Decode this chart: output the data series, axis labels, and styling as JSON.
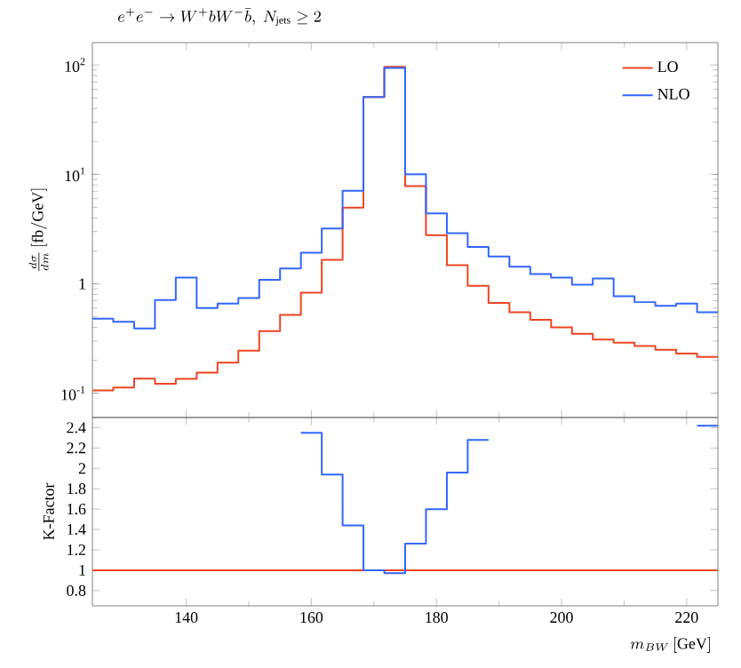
{
  "chart_data": [
    {
      "type": "histogram",
      "title": "e^+e^- \\to W^+bW^-\\bar{b},\\ N_{\\mathrm{jets}} \\geq 2",
      "ylabel": "\\frac{d\\sigma}{dm}\\,[\\mathrm{fb/GeV}]",
      "bins": [
        125,
        128.33,
        131.67,
        135,
        138.33,
        141.67,
        145,
        148.33,
        151.67,
        155,
        158.33,
        161.67,
        165,
        168.33,
        171.67,
        175,
        178.33,
        181.67,
        185,
        188.33,
        191.67,
        195,
        198.33,
        201.67,
        205,
        208.33,
        211.67,
        215,
        218.33,
        221.67,
        225
      ],
      "series": [
        {
          "name": "LO",
          "color": "#ee4422",
          "values": [
            0.106,
            0.113,
            0.136,
            0.122,
            0.135,
            0.154,
            0.19,
            0.245,
            0.37,
            0.52,
            0.83,
            1.66,
            4.96,
            50.8,
            96,
            7.8,
            2.78,
            1.48,
            0.96,
            0.67,
            0.55,
            0.47,
            0.4,
            0.35,
            0.31,
            0.29,
            0.27,
            0.25,
            0.23,
            0.215
          ]
        },
        {
          "name": "NLO",
          "color": "#3366ff",
          "values": [
            0.48,
            0.45,
            0.39,
            0.71,
            1.14,
            0.6,
            0.66,
            0.74,
            1.09,
            1.38,
            1.92,
            3.2,
            7.1,
            50.8,
            94,
            10,
            4.4,
            2.9,
            2.17,
            1.78,
            1.43,
            1.23,
            1.14,
            0.98,
            1.12,
            0.77,
            0.68,
            0.63,
            0.66,
            0.55
          ]
        }
      ],
      "xlim": [
        125,
        225
      ],
      "xticks": [
        140,
        160,
        180,
        200,
        220
      ],
      "log": "y",
      "ylim": [
        0.06,
        160
      ],
      "yticks": [
        {
          "value": 0.1,
          "label": "10$^{-1}$"
        },
        1,
        {
          "value": 10,
          "label": "10$^{1}$"
        },
        {
          "value": 100,
          "label": "10$^{2}$"
        }
      ],
      "tick_labels": "y",
      "legend": "top right",
      "grid": false
    },
    {
      "type": "step",
      "xlabel": "m_{BW}\\,[\\mathrm{GeV}]",
      "ylabel": "K-Factor",
      "series": [
        {
          "color": "#3366ff",
          "x": [
            158.33,
            161.67,
            165,
            168.33,
            171.67,
            175,
            178.33,
            181.67,
            185,
            188.33,
            200,
            221.67,
            225
          ],
          "values": [
            2.35,
            1.94,
            1.44,
            1.0,
            0.97,
            1.26,
            1.6,
            1.96,
            2.28,
            2.28,
            null,
            2.42,
            2.42
          ]
        }
      ],
      "ref_lines": [
        {
          "axis": "y",
          "value": 1,
          "color": "#ee4422"
        }
      ],
      "xlim": [
        125,
        225
      ],
      "xticks": [
        140,
        160,
        180,
        200,
        220
      ],
      "ylim": [
        0.65,
        2.5
      ],
      "yticks": [
        0.8,
        1,
        1.2,
        1.4,
        1.6,
        1.8,
        2,
        2.2,
        2.4
      ],
      "grid": false
    }
  ]
}
